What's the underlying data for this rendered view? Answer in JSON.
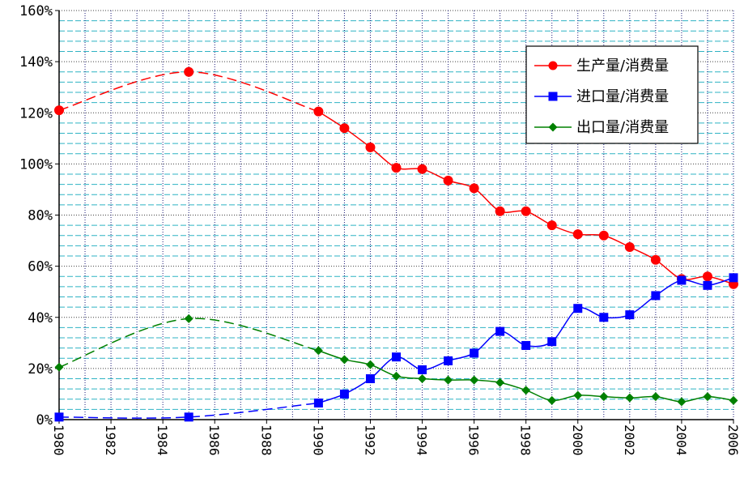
{
  "chart_data": {
    "type": "line",
    "title": "",
    "xlabel": "",
    "ylabel": "",
    "xlim": [
      1980,
      2006
    ],
    "ylim": [
      0,
      160
    ],
    "y_unit": "%",
    "x_ticks": [
      "1980",
      "1982",
      "1984",
      "1986",
      "1988",
      "1990",
      "1992",
      "1994",
      "1996",
      "1998",
      "2000",
      "2002",
      "2004",
      "2006"
    ],
    "y_ticks": [
      "0%",
      "20%",
      "40%",
      "60%",
      "80%",
      "100%",
      "120%",
      "140%",
      "160%"
    ],
    "grid": "on",
    "legend_position": "top-right",
    "series": [
      {
        "name": "生产量/消费量",
        "color": "#ff0000",
        "marker": "circle",
        "points": [
          {
            "x": 1980,
            "y": 121
          },
          {
            "x": 1985,
            "y": 136
          },
          {
            "x": 1990,
            "y": 120.5
          },
          {
            "x": 1991,
            "y": 114
          },
          {
            "x": 1992,
            "y": 106.5
          },
          {
            "x": 1993,
            "y": 98.5
          },
          {
            "x": 1994,
            "y": 98
          },
          {
            "x": 1995,
            "y": 93.5
          },
          {
            "x": 1996,
            "y": 90.5
          },
          {
            "x": 1997,
            "y": 81.5
          },
          {
            "x": 1998,
            "y": 81.5
          },
          {
            "x": 1999,
            "y": 76
          },
          {
            "x": 2000,
            "y": 72.5
          },
          {
            "x": 2001,
            "y": 72
          },
          {
            "x": 2002,
            "y": 67.5
          },
          {
            "x": 2003,
            "y": 62.5
          },
          {
            "x": 2004,
            "y": 55
          },
          {
            "x": 2005,
            "y": 56
          },
          {
            "x": 2006,
            "y": 53
          }
        ]
      },
      {
        "name": "进口量/消费量",
        "color": "#0000ff",
        "marker": "square",
        "points": [
          {
            "x": 1980,
            "y": 1
          },
          {
            "x": 1985,
            "y": 1
          },
          {
            "x": 1990,
            "y": 6.5
          },
          {
            "x": 1991,
            "y": 10
          },
          {
            "x": 1992,
            "y": 16
          },
          {
            "x": 1993,
            "y": 24.5
          },
          {
            "x": 1994,
            "y": 19.5
          },
          {
            "x": 1995,
            "y": 23
          },
          {
            "x": 1996,
            "y": 26
          },
          {
            "x": 1997,
            "y": 34.5
          },
          {
            "x": 1998,
            "y": 29
          },
          {
            "x": 1999,
            "y": 30.5
          },
          {
            "x": 2000,
            "y": 43.5
          },
          {
            "x": 2001,
            "y": 40
          },
          {
            "x": 2002,
            "y": 41
          },
          {
            "x": 2003,
            "y": 48.5
          },
          {
            "x": 2004,
            "y": 54.5
          },
          {
            "x": 2005,
            "y": 52.5
          },
          {
            "x": 2006,
            "y": 55.5
          }
        ]
      },
      {
        "name": "出口量/消费量",
        "color": "#008000",
        "marker": "diamond",
        "points": [
          {
            "x": 1980,
            "y": 20.5
          },
          {
            "x": 1985,
            "y": 39.5
          },
          {
            "x": 1990,
            "y": 27
          },
          {
            "x": 1991,
            "y": 23.5
          },
          {
            "x": 1992,
            "y": 21.5
          },
          {
            "x": 1993,
            "y": 17
          },
          {
            "x": 1994,
            "y": 16
          },
          {
            "x": 1995,
            "y": 15.5
          },
          {
            "x": 1996,
            "y": 15.5
          },
          {
            "x": 1997,
            "y": 14.5
          },
          {
            "x": 1998,
            "y": 11.5
          },
          {
            "x": 1999,
            "y": 7.5
          },
          {
            "x": 2000,
            "y": 9.5
          },
          {
            "x": 2001,
            "y": 9
          },
          {
            "x": 2002,
            "y": 8.5
          },
          {
            "x": 2003,
            "y": 9
          },
          {
            "x": 2004,
            "y": 7
          },
          {
            "x": 2005,
            "y": 9
          },
          {
            "x": 2006,
            "y": 7.5
          }
        ]
      }
    ]
  }
}
